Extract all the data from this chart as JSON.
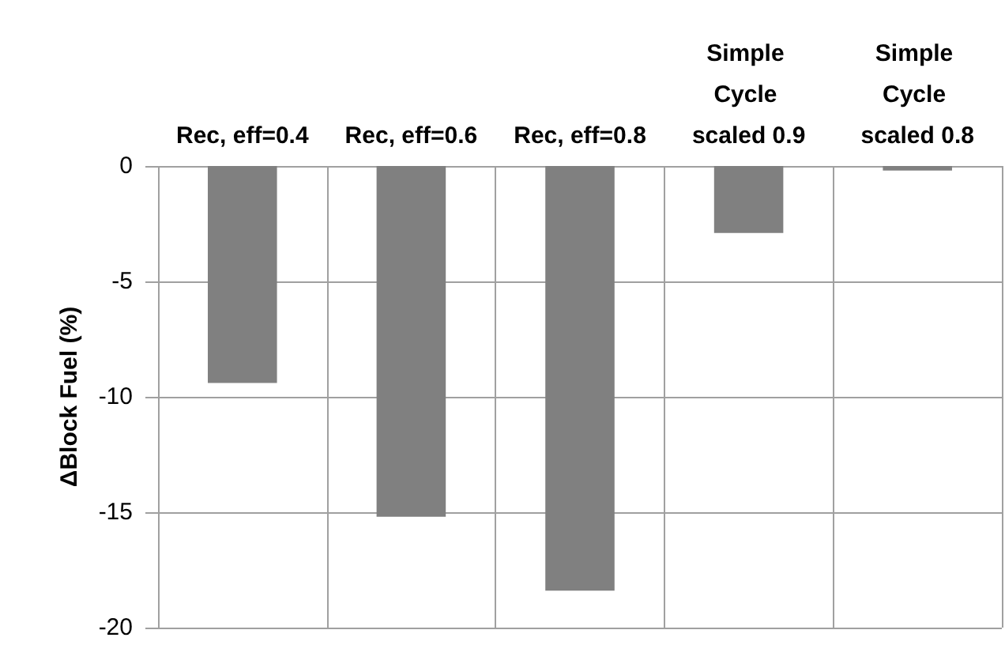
{
  "chart_data": {
    "type": "bar",
    "ylabel": "ΔBlock Fuel (%)",
    "categories": [
      "Rec, eff=0.4",
      "Rec, eff=0.6",
      "Rec, eff=0.8",
      "Simple Cycle scaled 0.9",
      "Simple Cycle scaled 0.8"
    ],
    "values": [
      -9.4,
      -15.2,
      -18.4,
      -2.9,
      -0.2
    ],
    "color": "#808080",
    "ylim": [
      -20,
      0
    ],
    "yticks": [
      -20,
      -15,
      -10,
      -5,
      0
    ],
    "grid": true
  }
}
